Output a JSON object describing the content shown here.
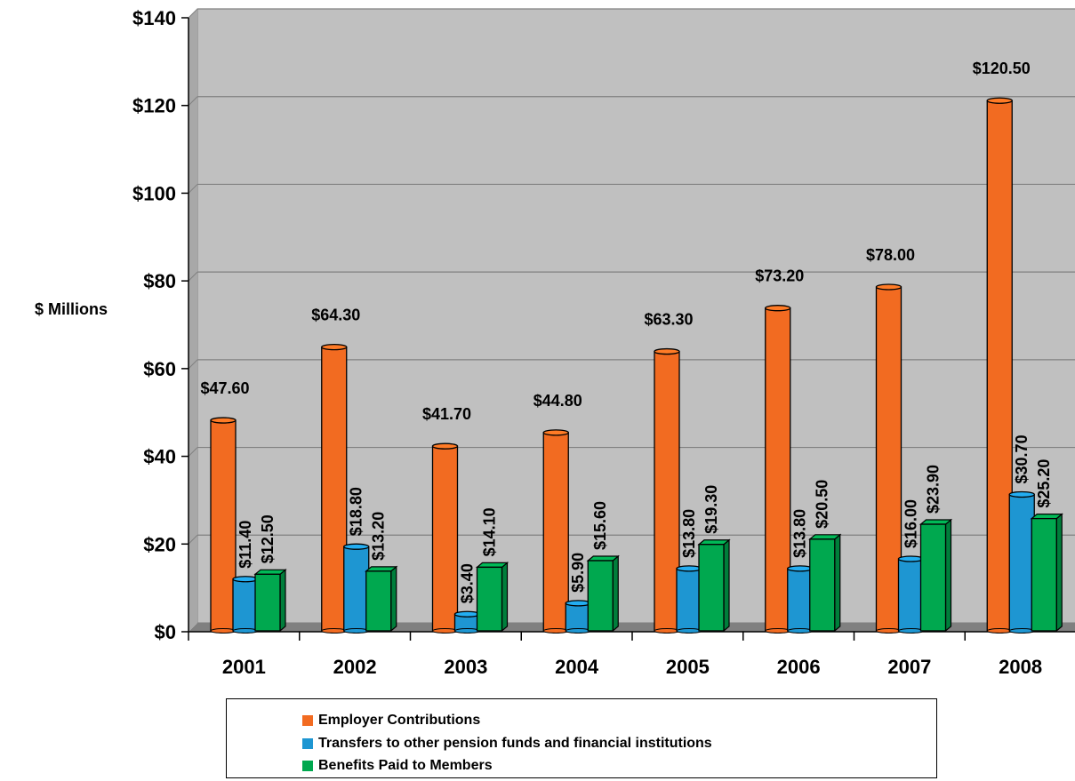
{
  "chart_data": {
    "type": "bar",
    "title": "",
    "xlabel": "",
    "ylabel": "$ Millions",
    "ylim": [
      0,
      140
    ],
    "y_ticks": [
      "$0",
      "$20",
      "$40",
      "$60",
      "$80",
      "$100",
      "$120",
      "$140"
    ],
    "y_tick_values": [
      0,
      20,
      40,
      60,
      80,
      100,
      120,
      140
    ],
    "categories": [
      "2001",
      "2002",
      "2003",
      "2004",
      "2005",
      "2006",
      "2007",
      "2008"
    ],
    "grid": true,
    "legend_position": "bottom",
    "series": [
      {
        "name": "Employer Contributions",
        "color": "#f26b21",
        "values": [
          47.6,
          64.3,
          41.7,
          44.8,
          63.3,
          73.2,
          78.0,
          120.5
        ],
        "labels": [
          "$47.60",
          "$64.30",
          "$41.70",
          "$44.80",
          "$63.30",
          "$73.20",
          "$78.00",
          "$120.50"
        ]
      },
      {
        "name": "Transfers to other pension funds and financial institutions",
        "color": "#1e96d2",
        "values": [
          11.4,
          18.8,
          3.4,
          5.9,
          13.8,
          13.8,
          16.0,
          30.7
        ],
        "labels": [
          "$11.40",
          "$18.80",
          "$3.40",
          "$5.90",
          "$13.80",
          "$13.80",
          "$16.00",
          "$30.70"
        ]
      },
      {
        "name": "Benefits Paid to Members",
        "color": "#00a84f",
        "values": [
          12.5,
          13.2,
          14.1,
          15.6,
          19.3,
          20.5,
          23.9,
          25.2
        ],
        "labels": [
          "$12.50",
          "$13.20",
          "$14.10",
          "$15.60",
          "$19.30",
          "$20.50",
          "$23.90",
          "$25.20"
        ]
      }
    ]
  }
}
